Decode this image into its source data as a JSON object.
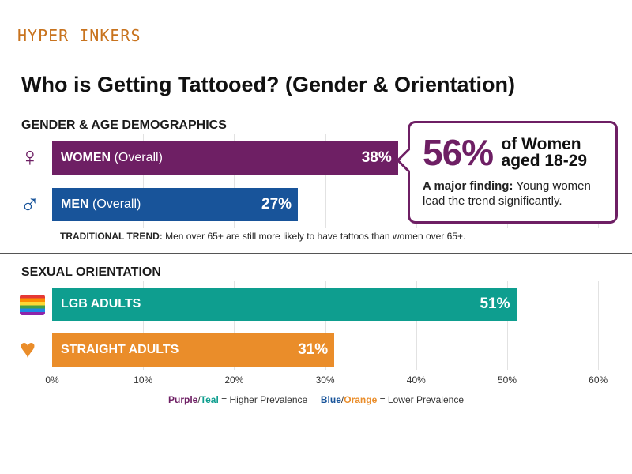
{
  "logo": "HYPER INKERS",
  "title": "Who is Getting Tattooed? (Gender & Orientation)",
  "colors": {
    "purple": "#6e1f64",
    "blue": "#18549a",
    "teal": "#0e9e8f",
    "orange": "#ea8d2a"
  },
  "chart_data": [
    {
      "type": "bar",
      "orientation": "horizontal",
      "title": "GENDER & AGE DEMOGRAPHICS",
      "categories": [
        "WOMEN (Overall)",
        "MEN (Overall)"
      ],
      "category_parts": [
        {
          "bold": "WOMEN",
          "rest": "(Overall)"
        },
        {
          "bold": "MEN",
          "rest": "(Overall)"
        }
      ],
      "icons": [
        "female-symbol-icon",
        "male-symbol-icon"
      ],
      "values": [
        38,
        27
      ],
      "value_labels": [
        "38%",
        "27%"
      ],
      "colors": [
        "#6e1f64",
        "#18549a"
      ],
      "xlim": [
        0,
        60
      ],
      "grid": true
    },
    {
      "type": "bar",
      "orientation": "horizontal",
      "title": "SEXUAL ORIENTATION",
      "categories": [
        "LGB ADULTS",
        "STRAIGHT ADULTS"
      ],
      "icons": [
        "rainbow-flag-icon",
        "heart-icon"
      ],
      "values": [
        51,
        31
      ],
      "value_labels": [
        "51%",
        "31%"
      ],
      "colors": [
        "#0e9e8f",
        "#ea8d2a"
      ],
      "xlim": [
        0,
        60
      ],
      "grid": true,
      "x_ticks": [
        "0%",
        "10%",
        "20%",
        "30%",
        "40%",
        "50%",
        "60%"
      ]
    }
  ],
  "callout": {
    "big": "56%",
    "line1": "of Women",
    "line2": "aged 18-29",
    "finding_bold": "A major finding:",
    "finding_rest": "Young women lead the trend significantly."
  },
  "trend": {
    "bold": "TRADITIONAL TREND:",
    "rest": "Men over 65+ are still more likely to have tattoos than women over 65+."
  },
  "legend": {
    "purple": "Purple",
    "slash1": "/",
    "teal": "Teal",
    "higher": "= Higher Prevalence",
    "blue": "Blue",
    "slash2": "/",
    "orange": "Orange",
    "lower": "= Lower Prevalence"
  }
}
